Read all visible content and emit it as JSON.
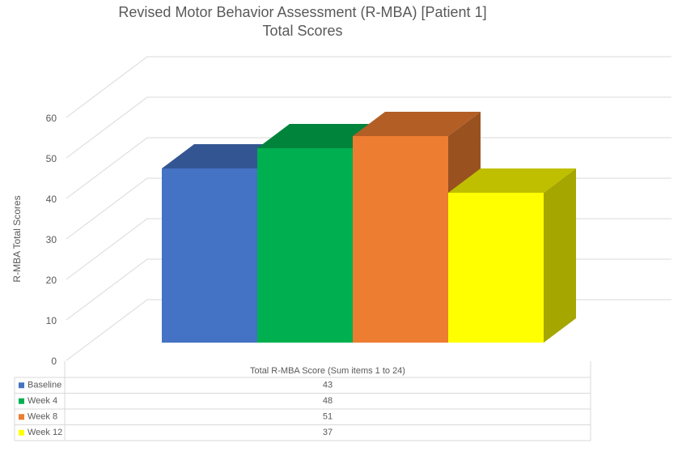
{
  "chart_data": {
    "type": "bar",
    "title": "Revised Motor Behavior Assessment (R-MBA) [Patient 1]",
    "subtitle": "Total Scores",
    "y_label": "R-MBA Total Scores",
    "categories": [
      "Total R-MBA Score (Sum items 1 to 24)"
    ],
    "series": [
      {
        "name": "Baseline",
        "color": "#4472c4",
        "values": [
          43
        ]
      },
      {
        "name": "Week 4",
        "color": "#00b050",
        "values": [
          48
        ]
      },
      {
        "name": "Week 8",
        "color": "#ed7d31",
        "values": [
          51
        ]
      },
      {
        "name": "Week 12",
        "color": "#ffff00",
        "values": [
          37
        ]
      }
    ],
    "ylim": [
      0,
      60
    ],
    "yticks": [
      0,
      10,
      20,
      30,
      40,
      50,
      60
    ],
    "grid": true,
    "data_table": true
  }
}
